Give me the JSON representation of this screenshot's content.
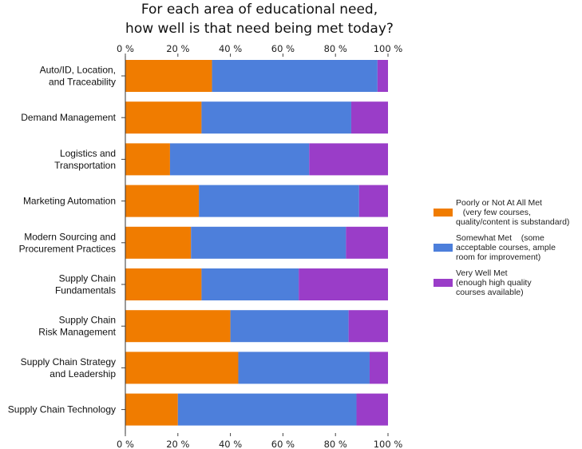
{
  "chart_data": {
    "type": "bar",
    "orientation": "horizontal",
    "stacked": true,
    "title_lines": [
      "For each area of educational need,",
      "how well is that need being met today?"
    ],
    "categories": [
      [
        "Auto/ID, Location,",
        "and Traceability"
      ],
      [
        "Demand Management"
      ],
      [
        "Logistics and",
        "Transportation"
      ],
      [
        "Marketing Automation"
      ],
      [
        "Modern Sourcing and",
        "Procurement Practices"
      ],
      [
        "Supply Chain",
        "Fundamentals"
      ],
      [
        "Supply Chain",
        "Risk Management"
      ],
      [
        "Supply Chain Strategy",
        "and Leadership"
      ],
      [
        "Supply Chain Technology"
      ]
    ],
    "series": [
      {
        "name": "Poorly or Not At All Met",
        "detail": "(very few courses, quality/content is substandard)",
        "color": "#f07c00",
        "values": [
          33,
          29,
          17,
          28,
          25,
          29,
          40,
          43,
          20
        ]
      },
      {
        "name": "Somewhat Met",
        "detail": "(some acceptable courses, ample room for improvement)",
        "color": "#4d7fdb",
        "values": [
          63,
          57,
          53,
          61,
          59,
          37,
          45,
          50,
          68
        ]
      },
      {
        "name": "Very Well Met",
        "detail": "(enough high quality courses available)",
        "color": "#9a3dc8",
        "values": [
          4,
          14,
          30,
          11,
          16,
          34,
          15,
          7,
          12
        ]
      }
    ],
    "x_ticks": [
      "0 %",
      "20 %",
      "40 %",
      "60 %",
      "80 %",
      "100 %"
    ],
    "xlim": [
      0,
      100
    ],
    "grid": false,
    "legend_position": "right",
    "legend_lines": [
      [
        "Poorly or Not At All Met",
        "   (very few courses,",
        "quality/content is substandard)"
      ],
      [
        "Somewhat Met    (some",
        "acceptable courses, ample",
        "room for improvement)"
      ],
      [
        "Very Well Met",
        "(enough high quality",
        "courses available)"
      ]
    ]
  }
}
